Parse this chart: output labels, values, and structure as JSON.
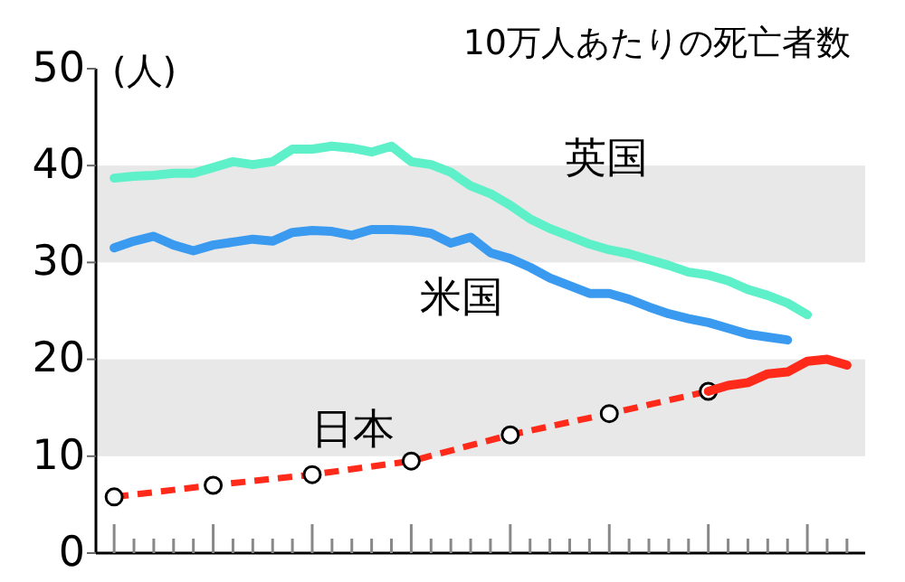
{
  "chart_data": {
    "type": "line",
    "subtitle": "10万人あたりの死亡者数",
    "ylabel": "(人)",
    "categories": [
      null,
      null,
      null,
      null,
      null,
      null,
      null,
      null,
      null,
      null,
      null,
      null,
      null,
      null,
      null,
      null,
      null,
      null,
      null,
      null,
      null,
      null,
      null,
      null,
      null,
      null,
      null,
      null,
      null,
      null,
      null,
      null,
      null,
      null,
      null,
      null,
      null,
      null
    ],
    "ylim": [
      0,
      50
    ],
    "yticks": [
      0,
      10,
      20,
      30,
      40,
      50
    ],
    "grid": false,
    "line_style": "solid",
    "marker": "none",
    "bands": [
      {
        "axis": "y",
        "from": 10,
        "to": 20,
        "color": "#e8e8e8"
      },
      {
        "axis": "y",
        "from": 30,
        "to": 40,
        "color": "#e8e8e8"
      }
    ],
    "series": [
      {
        "name": "英国",
        "color": "#5ef0c8",
        "values": [
          38.7,
          38.9,
          39.0,
          39.2,
          39.2,
          39.8,
          40.4,
          40.1,
          40.4,
          41.7,
          41.7,
          42.0,
          41.8,
          41.4,
          42.0,
          40.4,
          40.1,
          39.3,
          37.9,
          37.1,
          35.9,
          34.5,
          33.5,
          32.7,
          31.9,
          31.3,
          30.9,
          30.3,
          29.7,
          29.0,
          28.7,
          28.1,
          27.2,
          26.6,
          25.8,
          24.6,
          null,
          null
        ]
      },
      {
        "name": "米国",
        "color": "#3a9af0",
        "values": [
          31.5,
          32.2,
          32.7,
          31.8,
          31.2,
          31.8,
          32.1,
          32.4,
          32.2,
          33.1,
          33.3,
          33.2,
          32.8,
          33.4,
          33.4,
          33.3,
          33.0,
          32.0,
          32.6,
          31.0,
          30.4,
          29.5,
          28.4,
          27.6,
          26.8,
          26.8,
          26.2,
          25.4,
          24.7,
          24.2,
          23.8,
          23.2,
          22.6,
          22.3,
          22.0,
          null,
          null,
          null
        ]
      },
      {
        "name": "日本",
        "color": "#ff2a1a",
        "line_style": "dashed",
        "marker": "circle",
        "values": [
          5.8,
          null,
          null,
          null,
          null,
          7.0,
          null,
          null,
          null,
          null,
          8.1,
          null,
          null,
          null,
          null,
          9.5,
          null,
          null,
          null,
          null,
          12.2,
          null,
          null,
          null,
          null,
          14.4,
          null,
          null,
          null,
          null,
          16.7,
          null,
          null,
          null,
          null,
          null,
          null,
          null
        ]
      },
      {
        "color": "#ff2a1a",
        "values": [
          null,
          null,
          null,
          null,
          null,
          null,
          null,
          null,
          null,
          null,
          null,
          null,
          null,
          null,
          null,
          null,
          null,
          null,
          null,
          null,
          null,
          null,
          null,
          null,
          null,
          null,
          null,
          null,
          null,
          null,
          16.7,
          17.3,
          17.6,
          18.5,
          18.7,
          19.8,
          20.0,
          19.4
        ]
      }
    ]
  }
}
